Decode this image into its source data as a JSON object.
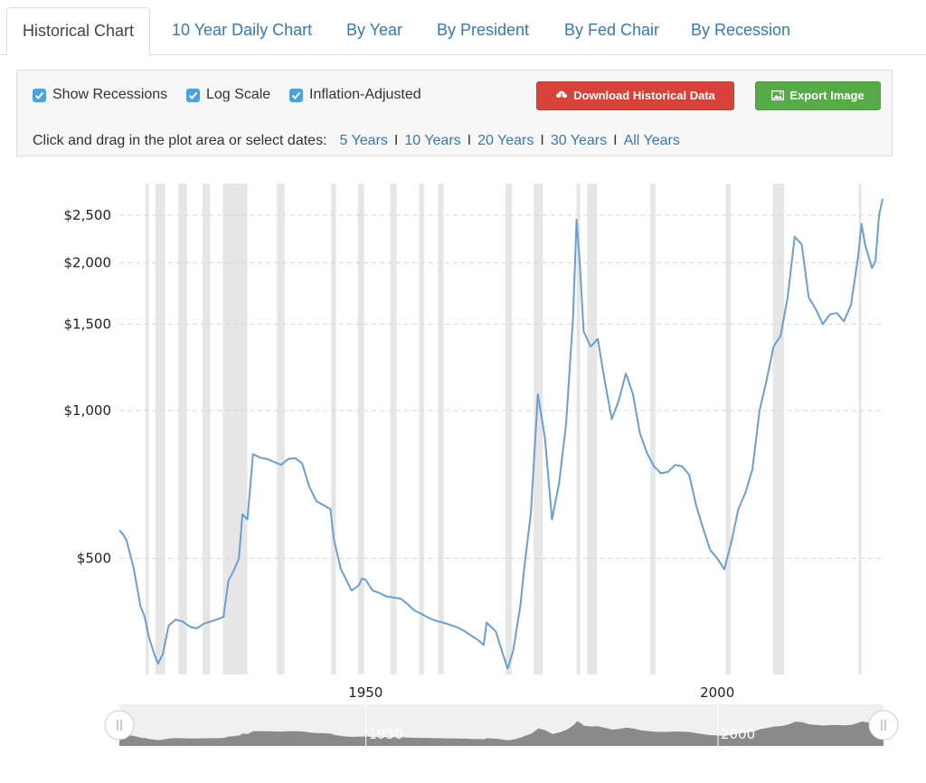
{
  "tabs": [
    {
      "label": "Historical Chart",
      "active": true
    },
    {
      "label": "10 Year Daily Chart"
    },
    {
      "label": "By Year"
    },
    {
      "label": "By President"
    },
    {
      "label": "By Fed Chair"
    },
    {
      "label": "By Recession"
    }
  ],
  "options": {
    "show_recessions": {
      "label": "Show Recessions",
      "checked": true
    },
    "log_scale": {
      "label": "Log Scale",
      "checked": true
    },
    "inflation_adjusted": {
      "label": "Inflation-Adjusted",
      "checked": true
    }
  },
  "buttons": {
    "download": {
      "label": "Download Historical Data",
      "icon": "cloud-download-icon"
    },
    "export": {
      "label": "Export Image",
      "icon": "image-icon"
    }
  },
  "range": {
    "prompt": "Click and drag in the plot area or select dates:",
    "options": [
      "5 Years",
      "10 Years",
      "20 Years",
      "30 Years",
      "All Years"
    ]
  },
  "colors": {
    "line": "#6a9fd4",
    "recession": "#e6e6e6",
    "navigator_fill": "#8a8a8a",
    "accent": "#337ab7"
  },
  "chart_data": {
    "type": "line",
    "title": "",
    "xlabel": "",
    "ylabel": "",
    "y_scale": "log",
    "xlim": [
      1915,
      2023.5
    ],
    "ylim": [
      290,
      2900
    ],
    "y_ticks": [
      500,
      1000,
      1500,
      2000,
      2500
    ],
    "y_tick_labels": [
      "$500",
      "$1,000",
      "$1,500",
      "$2,000",
      "$2,500"
    ],
    "x_ticks": [
      1950,
      2000
    ],
    "x_tick_labels": [
      "1950",
      "2000"
    ],
    "grid": true,
    "recessions": [
      [
        1918.7,
        1919.2
      ],
      [
        1920.1,
        1921.5
      ],
      [
        1923.4,
        1924.6
      ],
      [
        1926.8,
        1927.9
      ],
      [
        1929.7,
        1933.2
      ],
      [
        1937.4,
        1938.5
      ],
      [
        1945.1,
        1945.8
      ],
      [
        1948.9,
        1949.8
      ],
      [
        1953.5,
        1954.4
      ],
      [
        1957.6,
        1958.3
      ],
      [
        1960.3,
        1961.1
      ],
      [
        1969.9,
        1970.8
      ],
      [
        1973.9,
        1975.2
      ],
      [
        1980.0,
        1980.5
      ],
      [
        1981.5,
        1982.9
      ],
      [
        1990.5,
        1991.2
      ],
      [
        2001.2,
        2001.9
      ],
      [
        2007.9,
        2009.5
      ],
      [
        2020.1,
        2020.4
      ]
    ],
    "navigator_ticks": [
      "1950",
      "2000"
    ],
    "series": [
      {
        "points": [
          [
            1915.0,
            570
          ],
          [
            1915.5,
            560
          ],
          [
            1916.0,
            545
          ],
          [
            1917.0,
            480
          ],
          [
            1918.0,
            400
          ],
          [
            1918.6,
            380
          ],
          [
            1919.2,
            345
          ],
          [
            1920.0,
            318
          ],
          [
            1920.5,
            305
          ],
          [
            1921.2,
            320
          ],
          [
            1922.0,
            365
          ],
          [
            1923.0,
            375
          ],
          [
            1924.0,
            372
          ],
          [
            1925.0,
            363
          ],
          [
            1926.0,
            360
          ],
          [
            1927.0,
            368
          ],
          [
            1928.0,
            372
          ],
          [
            1929.0,
            376
          ],
          [
            1929.8,
            380
          ],
          [
            1930.5,
            450
          ],
          [
            1931.2,
            470
          ],
          [
            1932.0,
            500
          ],
          [
            1932.5,
            615
          ],
          [
            1933.2,
            600
          ],
          [
            1934.0,
            815
          ],
          [
            1935.0,
            802
          ],
          [
            1936.0,
            797
          ],
          [
            1937.0,
            786
          ],
          [
            1938.0,
            775
          ],
          [
            1939.0,
            797
          ],
          [
            1940.0,
            800
          ],
          [
            1941.0,
            780
          ],
          [
            1942.0,
            700
          ],
          [
            1943.0,
            654
          ],
          [
            1944.0,
            642
          ],
          [
            1945.0,
            630
          ],
          [
            1945.5,
            545
          ],
          [
            1946.5,
            475
          ],
          [
            1947.5,
            445
          ],
          [
            1948.0,
            430
          ],
          [
            1949.0,
            440
          ],
          [
            1949.5,
            455
          ],
          [
            1950.0,
            452
          ],
          [
            1951.0,
            430
          ],
          [
            1952.0,
            425
          ],
          [
            1953.0,
            418
          ],
          [
            1954.0,
            416
          ],
          [
            1955.0,
            414
          ],
          [
            1956.0,
            403
          ],
          [
            1957.0,
            391
          ],
          [
            1958.0,
            385
          ],
          [
            1959.0,
            378
          ],
          [
            1960.0,
            373
          ],
          [
            1961.0,
            370
          ],
          [
            1962.0,
            366
          ],
          [
            1963.0,
            362
          ],
          [
            1964.0,
            356
          ],
          [
            1965.0,
            348
          ],
          [
            1966.0,
            341
          ],
          [
            1966.8,
            333
          ],
          [
            1967.2,
            370
          ],
          [
            1968.5,
            355
          ],
          [
            1969.5,
            320
          ],
          [
            1970.2,
            298
          ],
          [
            1971.0,
            325
          ],
          [
            1972.0,
            400
          ],
          [
            1972.5,
            470
          ],
          [
            1973.5,
            620
          ],
          [
            1974.5,
            1080
          ],
          [
            1975.5,
            880
          ],
          [
            1976.5,
            600
          ],
          [
            1977.5,
            710
          ],
          [
            1978.5,
            940
          ],
          [
            1979.5,
            1550
          ],
          [
            1980.0,
            2450
          ],
          [
            1980.5,
            1950
          ],
          [
            1981.0,
            1450
          ],
          [
            1982.0,
            1350
          ],
          [
            1983.0,
            1400
          ],
          [
            1984.0,
            1150
          ],
          [
            1985.0,
            960
          ],
          [
            1986.0,
            1050
          ],
          [
            1987.0,
            1190
          ],
          [
            1988.0,
            1080
          ],
          [
            1989.0,
            900
          ],
          [
            1990.0,
            820
          ],
          [
            1991.0,
            770
          ],
          [
            1992.0,
            745
          ],
          [
            1993.0,
            750
          ],
          [
            1994.0,
            775
          ],
          [
            1995.0,
            770
          ],
          [
            1996.0,
            740
          ],
          [
            1997.0,
            640
          ],
          [
            1998.0,
            575
          ],
          [
            1999.0,
            520
          ],
          [
            2000.0,
            500
          ],
          [
            2001.0,
            475
          ],
          [
            2002.0,
            540
          ],
          [
            2003.0,
            630
          ],
          [
            2004.0,
            680
          ],
          [
            2005.0,
            760
          ],
          [
            2006.0,
            1000
          ],
          [
            2007.0,
            1150
          ],
          [
            2008.0,
            1350
          ],
          [
            2009.0,
            1420
          ],
          [
            2010.0,
            1700
          ],
          [
            2011.0,
            2260
          ],
          [
            2012.0,
            2180
          ],
          [
            2013.0,
            1700
          ],
          [
            2014.0,
            1610
          ],
          [
            2015.0,
            1500
          ],
          [
            2016.0,
            1570
          ],
          [
            2017.0,
            1580
          ],
          [
            2018.0,
            1520
          ],
          [
            2019.0,
            1640
          ],
          [
            2020.0,
            2050
          ],
          [
            2020.5,
            2400
          ],
          [
            2021.0,
            2180
          ],
          [
            2022.0,
            1950
          ],
          [
            2022.5,
            2020
          ],
          [
            2023.0,
            2500
          ],
          [
            2023.5,
            2700
          ]
        ]
      }
    ]
  }
}
